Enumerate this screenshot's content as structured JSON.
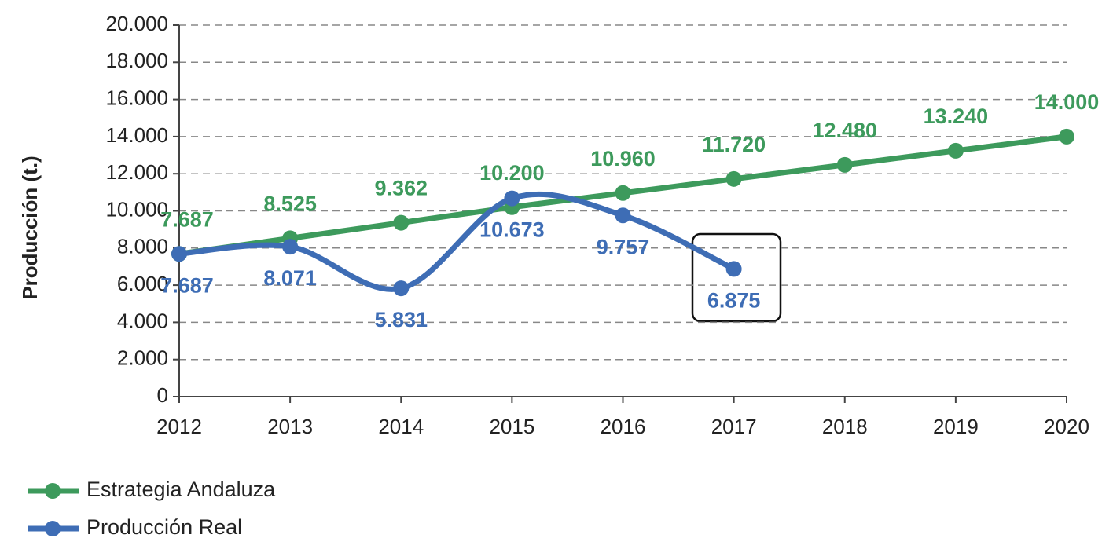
{
  "chart_data": {
    "type": "line",
    "y_label": "Producción (t.)",
    "categories": [
      "2012",
      "2013",
      "2014",
      "2015",
      "2016",
      "2017",
      "2018",
      "2019",
      "2020"
    ],
    "series": [
      {
        "name": "Estrategia Andaluza",
        "color": "#3d9a5c",
        "values": [
          7687,
          8525,
          9362,
          10200,
          10960,
          11720,
          12480,
          13240,
          14000
        ],
        "value_labels": [
          "7.687",
          "8.525",
          "9.362",
          "10.200",
          "10.960",
          "11.720",
          "12.480",
          "13.240",
          "14.000"
        ]
      },
      {
        "name": "Producción Real",
        "color": "#3e6db5",
        "values": [
          7687,
          8071,
          5831,
          10673,
          9757,
          6875,
          null,
          null,
          null
        ],
        "value_labels": [
          "7.687",
          "8.071",
          "5.831",
          "10.673",
          "9.757",
          "6.875",
          null,
          null,
          null
        ]
      }
    ],
    "ylim": [
      0,
      20000
    ],
    "yticks": [
      0,
      {
        "value": 2000,
        "label": "2.000"
      },
      {
        "value": 4000,
        "label": "4.000"
      },
      {
        "value": 6000,
        "label": "6.000"
      },
      {
        "value": 8000,
        "label": "8.000"
      },
      {
        "value": 10000,
        "label": "10.000"
      },
      {
        "value": 12000,
        "label": "12.000"
      },
      {
        "value": 14000,
        "label": "14.000"
      },
      {
        "value": 16000,
        "label": "16.000"
      },
      {
        "value": 18000,
        "label": "18.000"
      },
      {
        "value": 20000,
        "label": "20.000"
      }
    ],
    "grid": true,
    "legend": "bottom-left"
  }
}
